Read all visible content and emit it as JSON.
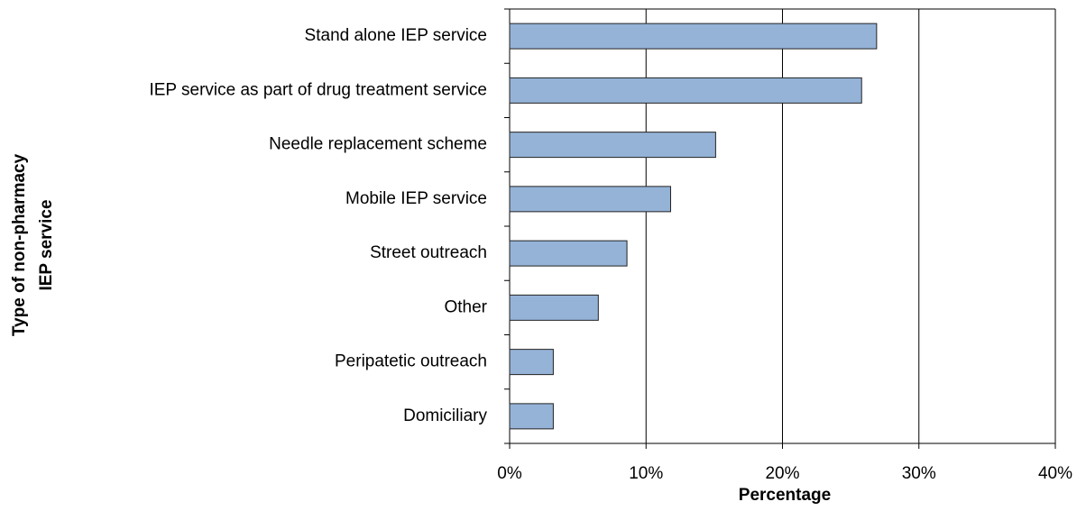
{
  "chart_data": {
    "type": "hbar",
    "ylabel": [
      "Type of non-pharmacy",
      "IEP service"
    ],
    "xlabel": "Percentage",
    "categories": [
      "Stand alone IEP service",
      "IEP service as part of drug treatment service",
      "Needle replacement scheme",
      "Mobile IEP service",
      "Street outreach",
      "Other",
      "Peripatetic outreach",
      "Domiciliary"
    ],
    "values": [
      26.9,
      25.8,
      15.1,
      11.8,
      8.6,
      6.5,
      3.2,
      3.2
    ],
    "color": "#95b3d7",
    "xlim": [
      0,
      40
    ],
    "xticks": [
      {
        "value": 0,
        "label": "0%"
      },
      {
        "value": 10,
        "label": "10%"
      },
      {
        "value": 20,
        "label": "20%"
      },
      {
        "value": 30,
        "label": "30%"
      },
      {
        "value": 40,
        "label": "40%"
      }
    ],
    "grid": true
  }
}
